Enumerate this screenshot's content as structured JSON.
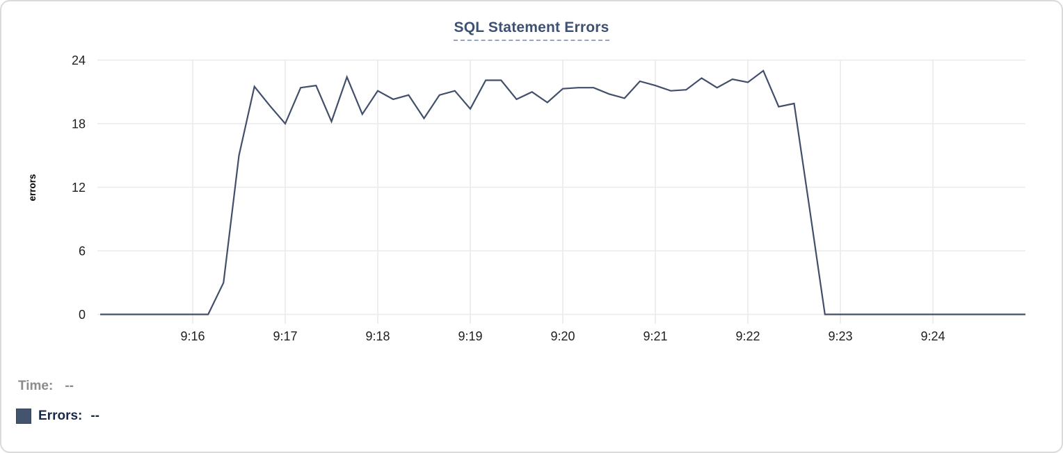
{
  "chart_data": {
    "type": "line",
    "title": "SQL Statement Errors",
    "xlabel": "",
    "ylabel": "errors",
    "ylim": [
      0,
      24
    ],
    "y_ticks": [
      0,
      6,
      12,
      18,
      24
    ],
    "x_range_minutes": [
      15.0,
      25.0
    ],
    "x_ticks": [
      {
        "minute": 16,
        "label": "9:16"
      },
      {
        "minute": 17,
        "label": "9:17"
      },
      {
        "minute": 18,
        "label": "9:18"
      },
      {
        "minute": 19,
        "label": "9:19"
      },
      {
        "minute": 20,
        "label": "9:20"
      },
      {
        "minute": 21,
        "label": "9:21"
      },
      {
        "minute": 22,
        "label": "9:22"
      },
      {
        "minute": 23,
        "label": "9:23"
      },
      {
        "minute": 24,
        "label": "9:24"
      }
    ],
    "grid": true,
    "legend_position": "bottom-left",
    "series": [
      {
        "name": "Errors",
        "color": "#414F6B",
        "points": [
          [
            15.0,
            0
          ],
          [
            15.167,
            0
          ],
          [
            15.333,
            0
          ],
          [
            15.5,
            0
          ],
          [
            15.667,
            0
          ],
          [
            15.833,
            0
          ],
          [
            16.0,
            0
          ],
          [
            16.167,
            0
          ],
          [
            16.333,
            3
          ],
          [
            16.5,
            15
          ],
          [
            16.667,
            21.5
          ],
          [
            16.833,
            19.7
          ],
          [
            17.0,
            18
          ],
          [
            17.167,
            21.4
          ],
          [
            17.333,
            21.6
          ],
          [
            17.5,
            18.2
          ],
          [
            17.667,
            22.4
          ],
          [
            17.833,
            18.9
          ],
          [
            18.0,
            21.1
          ],
          [
            18.167,
            20.3
          ],
          [
            18.333,
            20.7
          ],
          [
            18.5,
            18.5
          ],
          [
            18.667,
            20.7
          ],
          [
            18.833,
            21.1
          ],
          [
            19.0,
            19.4
          ],
          [
            19.167,
            22.1
          ],
          [
            19.333,
            22.1
          ],
          [
            19.5,
            20.3
          ],
          [
            19.667,
            21.0
          ],
          [
            19.833,
            20.0
          ],
          [
            20.0,
            21.3
          ],
          [
            20.167,
            21.4
          ],
          [
            20.333,
            21.4
          ],
          [
            20.5,
            20.8
          ],
          [
            20.667,
            20.4
          ],
          [
            20.833,
            22.0
          ],
          [
            21.0,
            21.6
          ],
          [
            21.167,
            21.1
          ],
          [
            21.333,
            21.2
          ],
          [
            21.5,
            22.3
          ],
          [
            21.667,
            21.4
          ],
          [
            21.833,
            22.2
          ],
          [
            22.0,
            21.9
          ],
          [
            22.167,
            23.0
          ],
          [
            22.333,
            19.6
          ],
          [
            22.5,
            19.9
          ],
          [
            22.667,
            10
          ],
          [
            22.833,
            0
          ],
          [
            23.0,
            0
          ],
          [
            23.167,
            0
          ],
          [
            23.333,
            0
          ],
          [
            23.5,
            0
          ],
          [
            23.667,
            0
          ],
          [
            23.833,
            0
          ],
          [
            24.0,
            0
          ],
          [
            24.167,
            0
          ],
          [
            24.333,
            0
          ],
          [
            24.5,
            0
          ],
          [
            24.667,
            0
          ],
          [
            24.833,
            0
          ],
          [
            25.0,
            0
          ]
        ]
      }
    ]
  },
  "readout": {
    "time_label": "Time:",
    "time_value": "--",
    "errors_label": "Errors:",
    "errors_value": "--"
  },
  "style": {
    "grid_color": "#EAEAEA",
    "tick_text_color": "#1E1E1E",
    "title_color": "#3D5173",
    "title_underline_color": "#97A5C1",
    "time_label_color": "#8C8C8C",
    "errors_label_color": "#1A294D",
    "card_border_color": "#DADADA",
    "legend_swatch_color": "#44546F",
    "line_color": "#414F6B"
  }
}
